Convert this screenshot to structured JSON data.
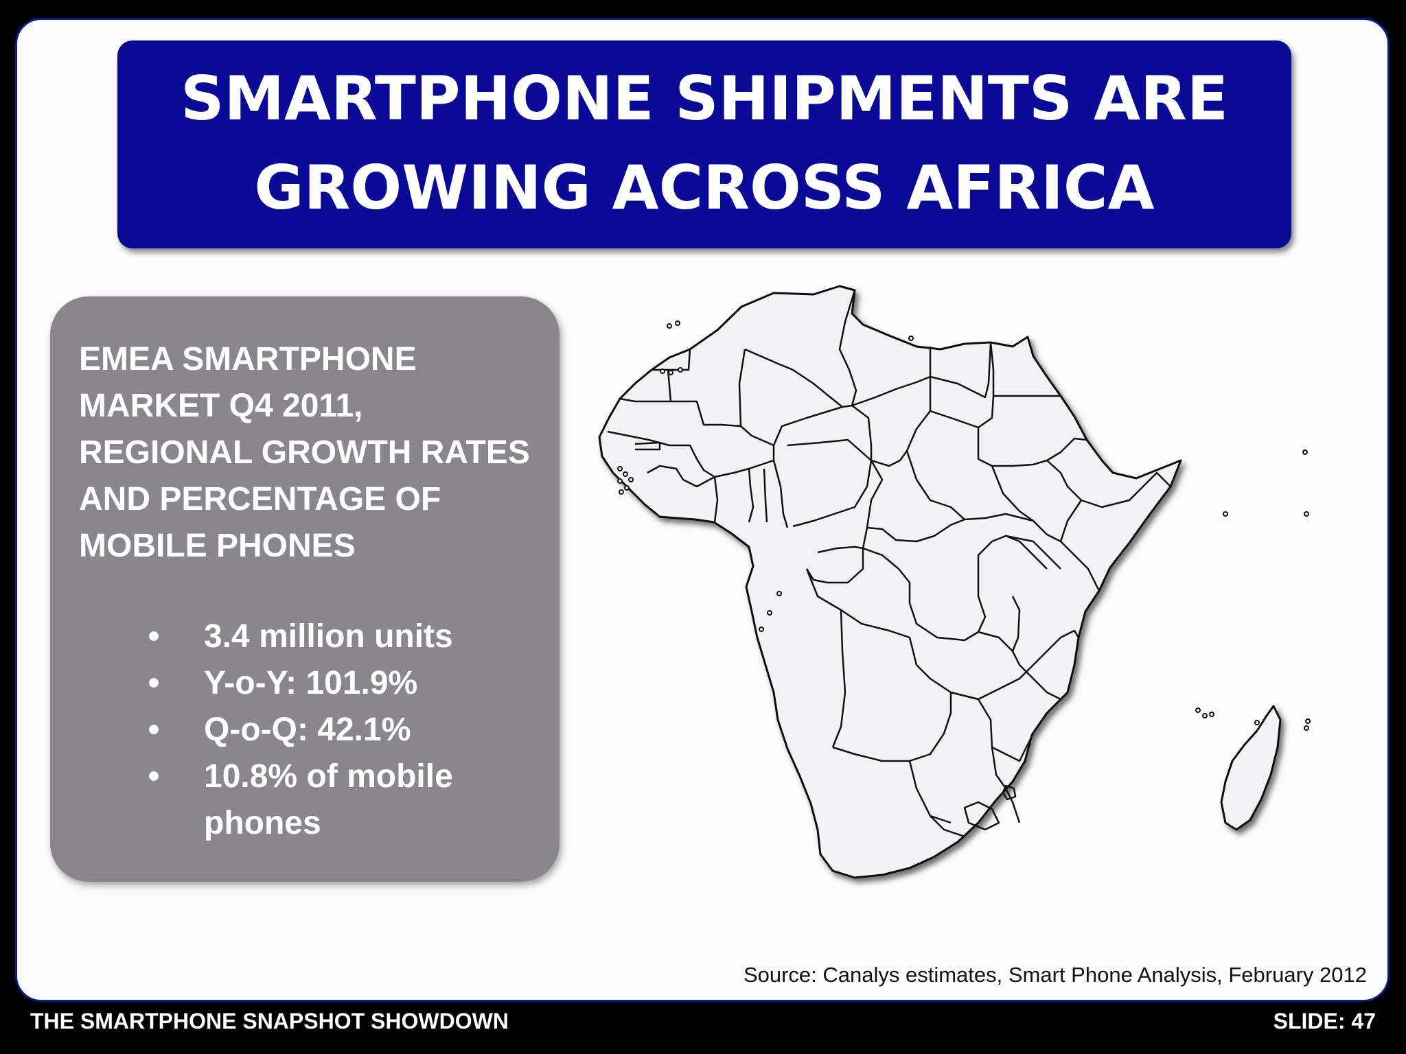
{
  "title": "SMARTPHONE SHIPMENTS ARE\nGROWING ACROSS AFRICA",
  "info_box": {
    "heading": "EMEA SMARTPHONE\nMARKET Q4 2011,\nREGIONAL GROWTH RATES\nAND PERCENTAGE OF\nMOBILE PHONES",
    "bullet_glyph": "•",
    "items": [
      "3.4 million units",
      "Y-o-Y: 101.9%",
      "Q-o-Q: 42.1%",
      "10.8% of mobile phones"
    ]
  },
  "source": "Source: Canalys estimates, Smart Phone Analysis, February 2012",
  "footer": {
    "left": "THE SMARTPHONE SNAPSHOT SHOWDOWN",
    "right": "SLIDE: 47"
  },
  "colors": {
    "title_banner": "#0a0a96",
    "info_box": "#89878b",
    "map_fill": "#f2f1f4",
    "map_stroke": "#111111",
    "frame": "#000000"
  }
}
